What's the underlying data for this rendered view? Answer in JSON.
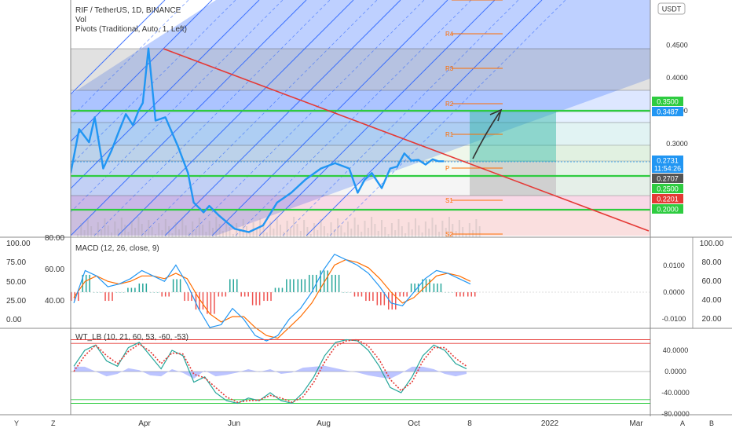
{
  "chart_data": [
    {
      "type": "line",
      "panel": "price",
      "title": "RIF / TetherUS, 1D, BINANCE",
      "subtitle_lines": [
        "Vol",
        "Pivots (Traditional, Auto, 1, Left)"
      ],
      "currency": "USDT",
      "x_ticks": [
        "Apr",
        "Jun",
        "Aug",
        "Oct",
        "8",
        "2022",
        "Mar"
      ],
      "y_ticks": [
        "0.4500",
        "0.4000",
        "0.3500",
        "0.3000"
      ],
      "price_series": {
        "x": [
          "2021-02-14",
          "2021-02-20",
          "2021-02-27",
          "2021-03-03",
          "2021-03-09",
          "2021-03-15",
          "2021-03-20",
          "2021-03-25",
          "2021-03-30",
          "2021-04-03",
          "2021-04-06",
          "2021-04-10",
          "2021-04-15",
          "2021-04-22",
          "2021-05-01",
          "2021-05-08",
          "2021-05-12",
          "2021-05-19",
          "2021-05-23",
          "2021-05-30",
          "2021-06-10",
          "2021-06-20",
          "2021-06-30",
          "2021-07-10",
          "2021-07-20",
          "2021-07-30",
          "2021-08-10",
          "2021-08-20",
          "2021-08-30",
          "2021-09-05",
          "2021-09-10",
          "2021-09-15",
          "2021-09-22",
          "2021-09-28",
          "2021-10-03",
          "2021-10-08",
          "2021-10-13",
          "2021-10-18",
          "2021-10-23",
          "2021-10-28",
          "2021-11-01",
          "2021-11-05"
        ],
        "y": [
          0.255,
          0.322,
          0.302,
          0.34,
          0.262,
          0.29,
          0.318,
          0.345,
          0.328,
          0.35,
          0.362,
          0.445,
          0.335,
          0.34,
          0.295,
          0.255,
          0.21,
          0.195,
          0.205,
          0.19,
          0.17,
          0.165,
          0.175,
          0.21,
          0.225,
          0.245,
          0.262,
          0.27,
          0.262,
          0.225,
          0.245,
          0.255,
          0.232,
          0.262,
          0.265,
          0.285,
          0.274,
          0.275,
          0.268,
          0.276,
          0.273,
          0.273
        ]
      },
      "right_labels": [
        {
          "text": "0.3500",
          "bg": "#2ecc40",
          "fg": "#ffffff"
        },
        {
          "text": "0.3487",
          "bg": "#2196f3",
          "fg": "#ffffff"
        },
        {
          "text": "0.2731",
          "bg": "#2196f3",
          "fg": "#ffffff"
        },
        {
          "text": "11:54:26",
          "bg": "#2196f3",
          "fg": "#ffffff"
        },
        {
          "text": "0.2707",
          "bg": "#555555",
          "fg": "#ffffff"
        },
        {
          "text": "0.2500",
          "bg": "#2ecc40",
          "fg": "#ffffff"
        },
        {
          "text": "0.2201",
          "bg": "#e53935",
          "fg": "#ffffff"
        },
        {
          "text": "0.2000",
          "bg": "#2ecc40",
          "fg": "#ffffff"
        }
      ],
      "horizontal_lines": [
        0.35,
        0.25,
        0.2
      ],
      "pivot_labels": [
        "R4",
        "R3",
        "R2",
        "R1",
        "P",
        "S1",
        "S2"
      ],
      "colors": {
        "price": "#2196f3",
        "trendline": "#e53935",
        "support": "#2ecc40",
        "pitchfork": "#2962ff"
      }
    },
    {
      "type": "line",
      "panel": "macd",
      "title": "MACD (12, 26, close, 9)",
      "y_ticks": [
        "0.0100",
        "0.0000",
        "-0.0100"
      ],
      "left_ticks": [
        "100.00",
        "75.00",
        "50.00",
        "25.00",
        "0.00"
      ],
      "inner_left_ticks": [
        "80.00",
        "60.00",
        "40.00"
      ],
      "right_ticks": [
        "100.00",
        "80.00",
        "60.00",
        "40.00",
        "20.00"
      ],
      "macd": [
        -0.004,
        0.008,
        0.006,
        0.002,
        0.003,
        0.005,
        0.008,
        0.006,
        0.004,
        0.01,
        0.003,
        -0.006,
        -0.013,
        -0.012,
        -0.006,
        -0.01,
        -0.016,
        -0.018,
        -0.016,
        -0.01,
        -0.006,
        0.0,
        0.008,
        0.014,
        0.012,
        0.01,
        0.007,
        0.002,
        -0.004,
        -0.005,
        0.0,
        0.005,
        0.008,
        0.007,
        0.005,
        0.003
      ],
      "signal": [
        -0.002,
        0.004,
        0.006,
        0.004,
        0.003,
        0.004,
        0.006,
        0.006,
        0.005,
        0.007,
        0.005,
        -0.002,
        -0.008,
        -0.011,
        -0.009,
        -0.009,
        -0.013,
        -0.016,
        -0.017,
        -0.013,
        -0.009,
        -0.004,
        0.003,
        0.01,
        0.012,
        0.011,
        0.009,
        0.005,
        0.0,
        -0.004,
        -0.002,
        0.002,
        0.006,
        0.007,
        0.006,
        0.004
      ],
      "colors": {
        "macd": "#2196f3",
        "signal": "#ff6d00",
        "hist_up": "#26a69a",
        "hist_down": "#ef5350"
      }
    },
    {
      "type": "line",
      "panel": "wavetrend",
      "title": "WT_LB (10, 21, 60, 53, -60, -53)",
      "y_ticks": [
        "40.0000",
        "0.0000",
        "-40.0000",
        "-80.0000"
      ],
      "levels": [
        60,
        53,
        -60,
        -53
      ],
      "wt1": [
        10,
        40,
        50,
        20,
        10,
        45,
        55,
        30,
        5,
        40,
        30,
        -20,
        -10,
        -40,
        -55,
        -60,
        -50,
        -55,
        -40,
        -55,
        -60,
        -40,
        -10,
        30,
        55,
        60,
        58,
        40,
        10,
        -30,
        -40,
        -10,
        30,
        50,
        40,
        15,
        5
      ],
      "wt2": [
        0,
        30,
        50,
        30,
        15,
        38,
        52,
        38,
        15,
        35,
        33,
        -5,
        -12,
        -30,
        -48,
        -58,
        -55,
        -54,
        -45,
        -50,
        -58,
        -48,
        -20,
        18,
        48,
        58,
        60,
        48,
        22,
        -15,
        -36,
        -20,
        20,
        45,
        45,
        25,
        10
      ],
      "colors": {
        "wt1": "#26a69a",
        "wt2": "#e53935",
        "ob": "#e53935",
        "os": "#2ecc40",
        "hist": "#6a7dfe"
      }
    }
  ],
  "toolbar": {
    "y_btn": "Y",
    "z_btn": "Z",
    "a_btn": "A",
    "b_btn": "B"
  }
}
